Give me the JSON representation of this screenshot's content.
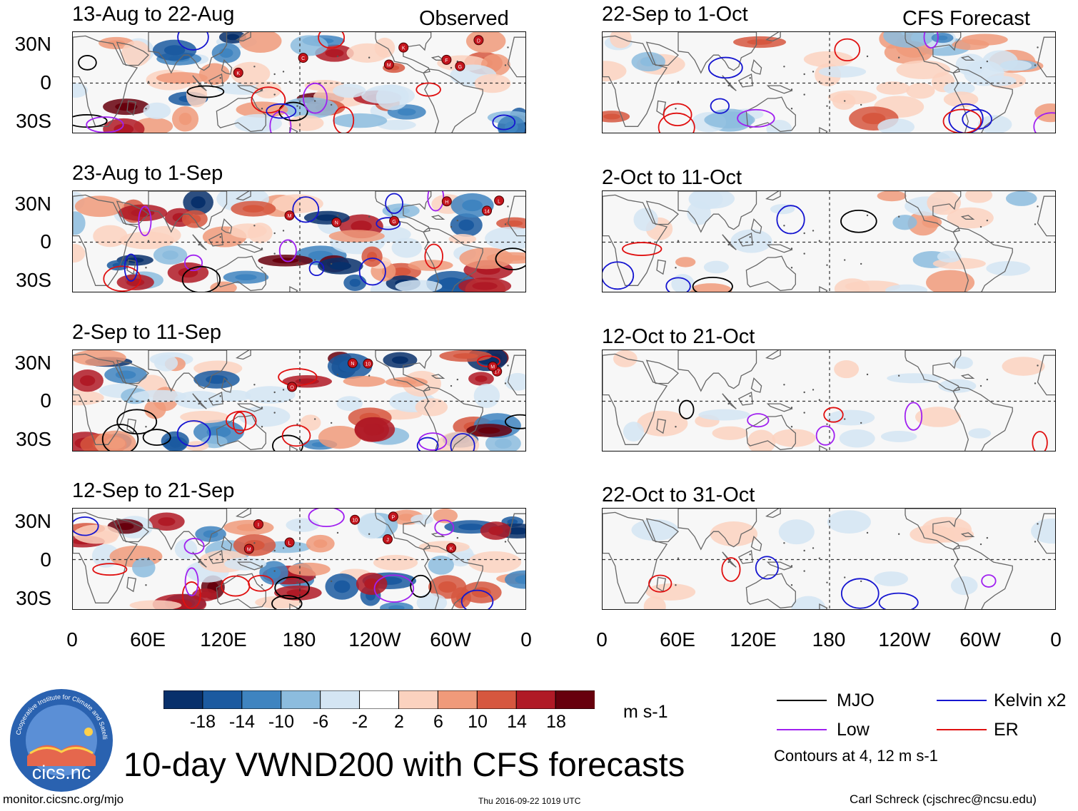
{
  "columns": {
    "observed": "Observed",
    "forecast": "CFS Forecast"
  },
  "observed_panels": [
    {
      "title": "13-Aug to 22-Aug"
    },
    {
      "title": "23-Aug to 1-Sep"
    },
    {
      "title": "2-Sep to 11-Sep"
    },
    {
      "title": "12-Sep to 21-Sep"
    }
  ],
  "forecast_panels": [
    {
      "title": "22-Sep to 1-Oct"
    },
    {
      "title": "2-Oct to 11-Oct"
    },
    {
      "title": "12-Oct to 21-Oct"
    },
    {
      "title": "22-Oct to 31-Oct"
    }
  ],
  "lat_labels": [
    "30N",
    "0",
    "30S"
  ],
  "lon_labels": [
    "0",
    "60E",
    "120E",
    "180",
    "120W",
    "60W",
    "0"
  ],
  "colorbar": {
    "labels": [
      "-18",
      "-14",
      "-10",
      "-6",
      "-2",
      "2",
      "6",
      "10",
      "14",
      "18"
    ],
    "colors": [
      "#08306b",
      "#1b5aa0",
      "#3f84c0",
      "#8cbcde",
      "#d4e5f3",
      "#ffffff",
      "#fbd2bf",
      "#f09a7a",
      "#d6573f",
      "#b01a26",
      "#67000d"
    ],
    "units": "m s-1"
  },
  "legend": {
    "items": [
      {
        "label": "MJO",
        "color": "#000000"
      },
      {
        "label": "Kelvin x2",
        "color": "#1515d0"
      },
      {
        "label": "Low",
        "color": "#a020f0"
      },
      {
        "label": "ER",
        "color": "#e01010"
      }
    ],
    "contours_note": "Contours at 4, 12 m s-1"
  },
  "logo": {
    "text": "cics.nc",
    "ring_text": "Cooperative Institute for Climate and Satellites"
  },
  "main_title": "10-day VWND200 with CFS forecasts",
  "footer": {
    "url": "monitor.cicsnc.org/mjo",
    "timestamp": "Thu 2016-09-22 1019 UTC",
    "author": "Carl Schreck (cjschrec@ncsu.edu)"
  },
  "storm_labels": [
    [
      "D",
      "C",
      "M",
      "K",
      "K",
      "F",
      "G"
    ],
    [
      "N",
      "14",
      "M",
      "L",
      "H",
      "G"
    ],
    [
      "17",
      "10",
      "M",
      "O",
      "N"
    ],
    [
      "10",
      "M",
      "P",
      "J",
      "I",
      "L",
      "K"
    ]
  ]
}
